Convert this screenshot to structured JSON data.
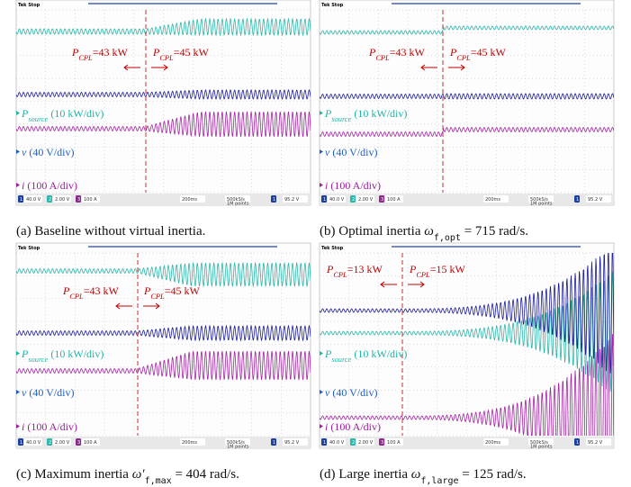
{
  "scope": {
    "header": "Tek Stop",
    "status": {
      "ch1": "1",
      "ch1_scale": "40.0 V",
      "ch2": "2",
      "ch2_scale": "2.00 V",
      "ch3": "3",
      "ch3_scale": "100 A",
      "timebase": "200ms",
      "sample_rate": "500kS/s",
      "record": "1M points",
      "trigger_ch": "1",
      "trigger_level": "95.2 V"
    },
    "trace_labels": {
      "source": {
        "symbol": "P",
        "subscript": "source",
        "text": " (10 kW/div)"
      },
      "voltage": {
        "symbol": "v",
        "text": " (40 V/div)"
      },
      "current": {
        "symbol": "i",
        "text": " (100 A/div)"
      }
    }
  },
  "panels": [
    {
      "before": {
        "symbol": "P",
        "subscript": "CPL",
        "text": "=43 kW"
      },
      "after": {
        "symbol": "P",
        "subscript": "CPL",
        "text": "=45 kW"
      },
      "caption": {
        "label": "(a)",
        "text": "Baseline without virtual inertia."
      }
    },
    {
      "before": {
        "symbol": "P",
        "subscript": "CPL",
        "text": "=43 kW"
      },
      "after": {
        "symbol": "P",
        "subscript": "CPL",
        "text": "=45 kW"
      },
      "caption": {
        "label": "(b)",
        "text": "Optimal inertia",
        "symbol": "ω",
        "subscript": "f,opt",
        "value": "= 715 rad/s."
      }
    },
    {
      "before": {
        "symbol": "P",
        "subscript": "CPL",
        "text": "=43 kW"
      },
      "after": {
        "symbol": "P",
        "subscript": "CPL",
        "text": "=45 kW"
      },
      "caption": {
        "label": "(c)",
        "text": "Maximum inertia",
        "symbol": "ω′",
        "subscript": "f,max",
        "value": "= 404 rad/s."
      }
    },
    {
      "before": {
        "symbol": "P",
        "subscript": "CPL",
        "text": "=13 kW"
      },
      "after": {
        "symbol": "P",
        "subscript": "CPL",
        "text": "=15 kW"
      },
      "caption": {
        "label": "(d)",
        "text": "Large inertia",
        "symbol": "ω",
        "subscript": "f,large",
        "value": "= 125 rad/s."
      }
    }
  ]
}
